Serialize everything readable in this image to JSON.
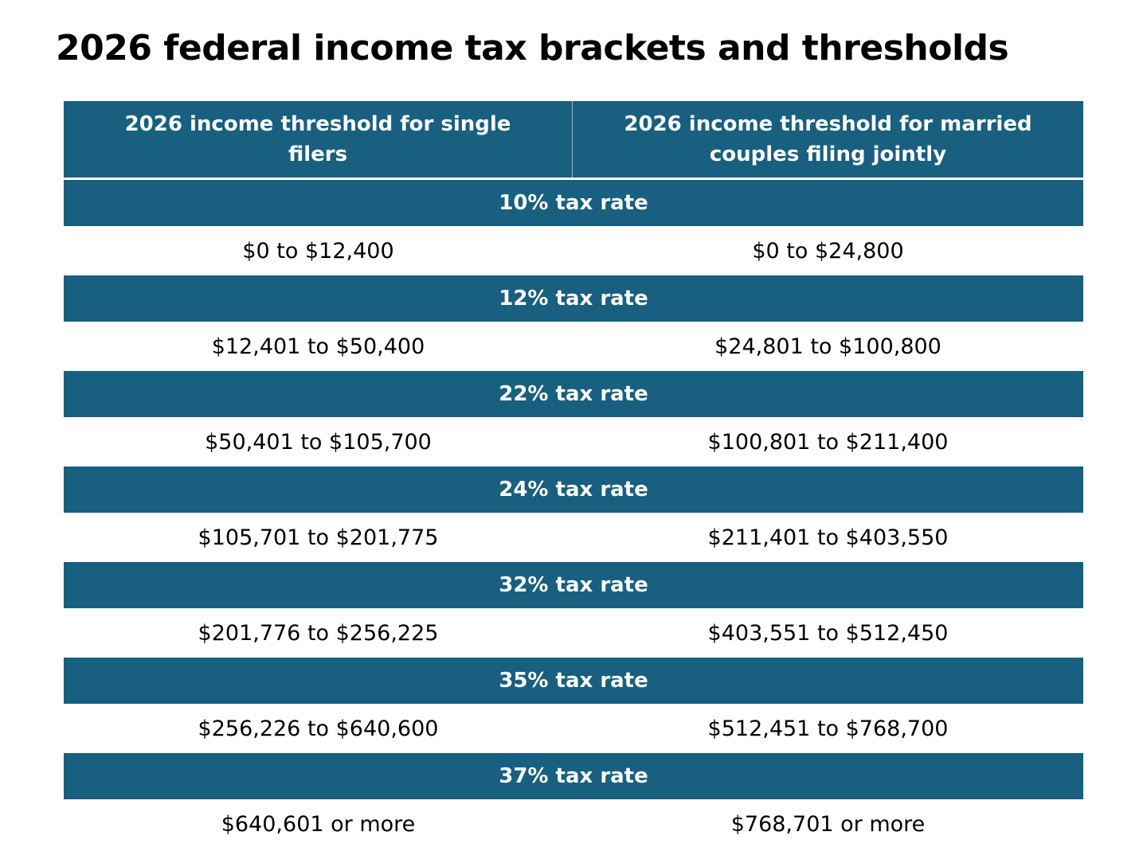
{
  "title": "2026 federal income tax brackets and thresholds",
  "colors": {
    "header_bg": "#185f80",
    "header_text": "#ffffff",
    "body_text": "#000000"
  },
  "table": {
    "headers": {
      "single": "2026 income threshold for single filers",
      "married": "2026 income threshold for married couples filing jointly"
    },
    "brackets": [
      {
        "rate": "10% tax rate",
        "single": "$0 to $12,400",
        "married": "$0 to $24,800"
      },
      {
        "rate": "12% tax rate",
        "single": "$12,401 to $50,400",
        "married": "$24,801 to $100,800"
      },
      {
        "rate": "22% tax rate",
        "single": "$50,401 to $105,700",
        "married": "$100,801 to $211,400"
      },
      {
        "rate": "24% tax rate",
        "single": "$105,701 to $201,775",
        "married": "$211,401 to $403,550"
      },
      {
        "rate": "32% tax rate",
        "single": "$201,776 to $256,225",
        "married": "$403,551 to $512,450"
      },
      {
        "rate": "35% tax rate",
        "single": "$256,226 to $640,600",
        "married": "$512,451 to $768,700"
      },
      {
        "rate": "37% tax rate",
        "single": "$640,601 or more",
        "married": "$768,701 or more"
      }
    ]
  }
}
